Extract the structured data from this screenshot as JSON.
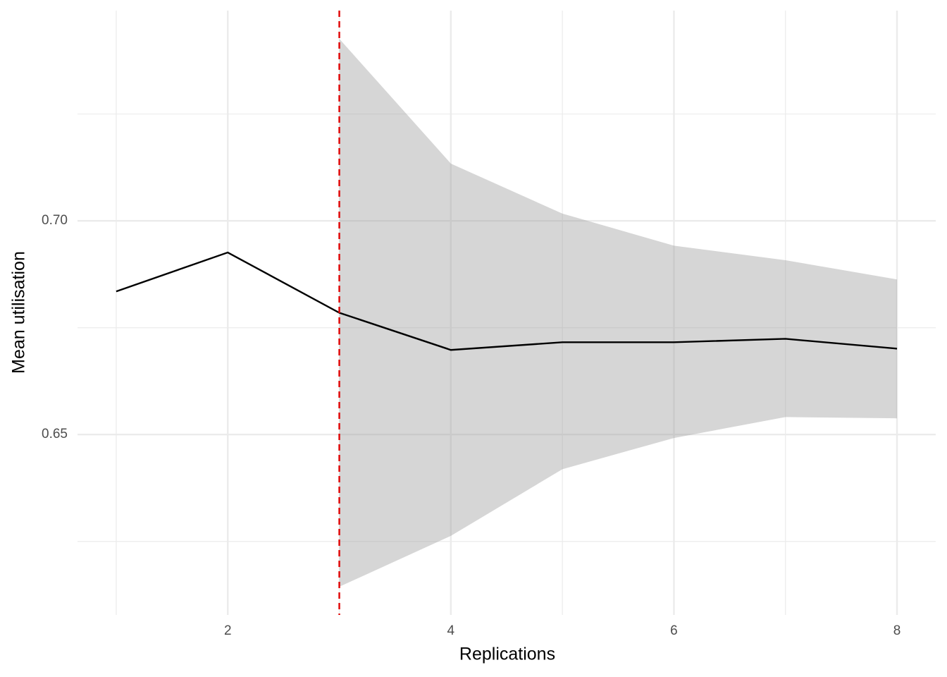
{
  "chart_data": {
    "type": "line",
    "x_label": "Replications",
    "y_label": "Mean utilisation",
    "x": [
      1,
      2,
      3,
      4,
      5,
      6,
      7,
      8
    ],
    "values": [
      0.6835,
      0.6926,
      0.6785,
      0.6698,
      0.6716,
      0.6716,
      0.6724,
      0.6701
    ],
    "lower": [
      null,
      null,
      0.6144,
      0.6263,
      0.6419,
      0.6492,
      0.6541,
      0.6538
    ],
    "upper": [
      null,
      null,
      0.7426,
      0.7134,
      0.7017,
      0.6942,
      0.6908,
      0.6863
    ],
    "color": "#000000",
    "band_color": "#999999",
    "vline": 3,
    "vline_color": "#e00000",
    "xlim": [
      0.653,
      8.347
    ],
    "ylim": [
      0.6078,
      0.7492
    ],
    "xticks": [
      2,
      4,
      6,
      8
    ],
    "minor_xticks": [
      1,
      3,
      5,
      7
    ],
    "yticks": [
      0.65,
      {
        "value": 0.7,
        "label": "0.70"
      }
    ],
    "minor_yticks": [
      0.625,
      0.675,
      0.725
    ],
    "grid": true
  }
}
